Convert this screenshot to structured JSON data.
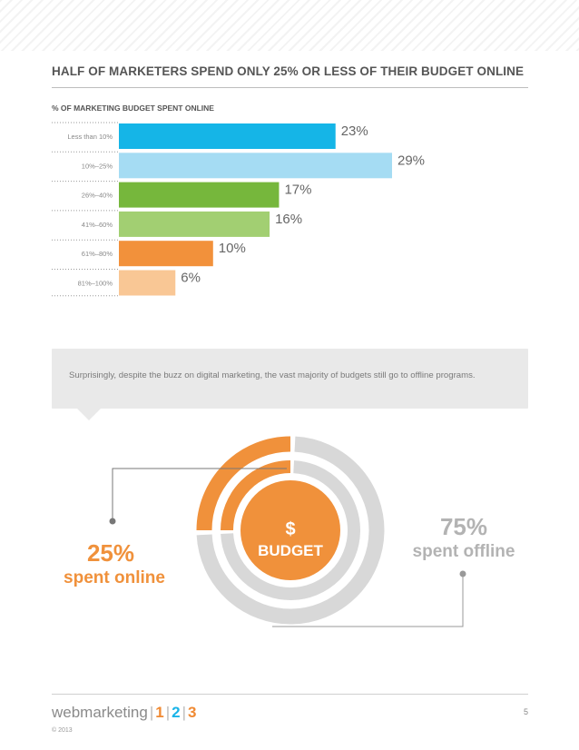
{
  "title": "HALF OF MARKETERS SPEND ONLY 25% OR LESS OF THEIR BUDGET ONLINE",
  "chart_label": "% OF MARKETING BUDGET SPENT ONLINE",
  "chart_data": [
    {
      "type": "bar",
      "orientation": "horizontal",
      "title": "% OF MARKETING BUDGET SPENT ONLINE",
      "categories": [
        "Less than 10%",
        "10%–25%",
        "26%–40%",
        "41%–60%",
        "61%–80%",
        "81%–100%"
      ],
      "values": [
        23,
        29,
        17,
        16,
        10,
        6
      ],
      "data_labels": [
        "23%",
        "29%",
        "17%",
        "16%",
        "10%",
        "6%"
      ],
      "colors": [
        "#15b5e7",
        "#a5dcf3",
        "#76b73c",
        "#a2cf72",
        "#f2913b",
        "#f9c795"
      ],
      "xlim": [
        0,
        29
      ],
      "grid": false,
      "legend": "none"
    },
    {
      "type": "pie",
      "style": "concentric-rings",
      "labels": [
        "spent online",
        "spent offline"
      ],
      "values": [
        25,
        75
      ],
      "value_labels": [
        "25%",
        "75%"
      ],
      "colors": [
        "#f0913b",
        "#d8d8d8"
      ],
      "legend": "none"
    }
  ],
  "callout": "Surprisingly, despite the buzz on digital marketing, the vast majority of budgets still go to offline programs.",
  "budget": {
    "symbol": "$",
    "label": "BUDGET",
    "online_value": "25%",
    "online_text": "spent online",
    "offline_value": "75%",
    "offline_text": "spent offline"
  },
  "footer": {
    "brand_word": "webmarketing",
    "num1": "1",
    "num2": "2",
    "num3": "3",
    "copyright": "© 2013",
    "page_number": "5"
  },
  "colors": {
    "orange": "#f0913b",
    "blue": "#15b5e7",
    "grey_ring": "#d8d8d8",
    "heading": "#555555"
  }
}
